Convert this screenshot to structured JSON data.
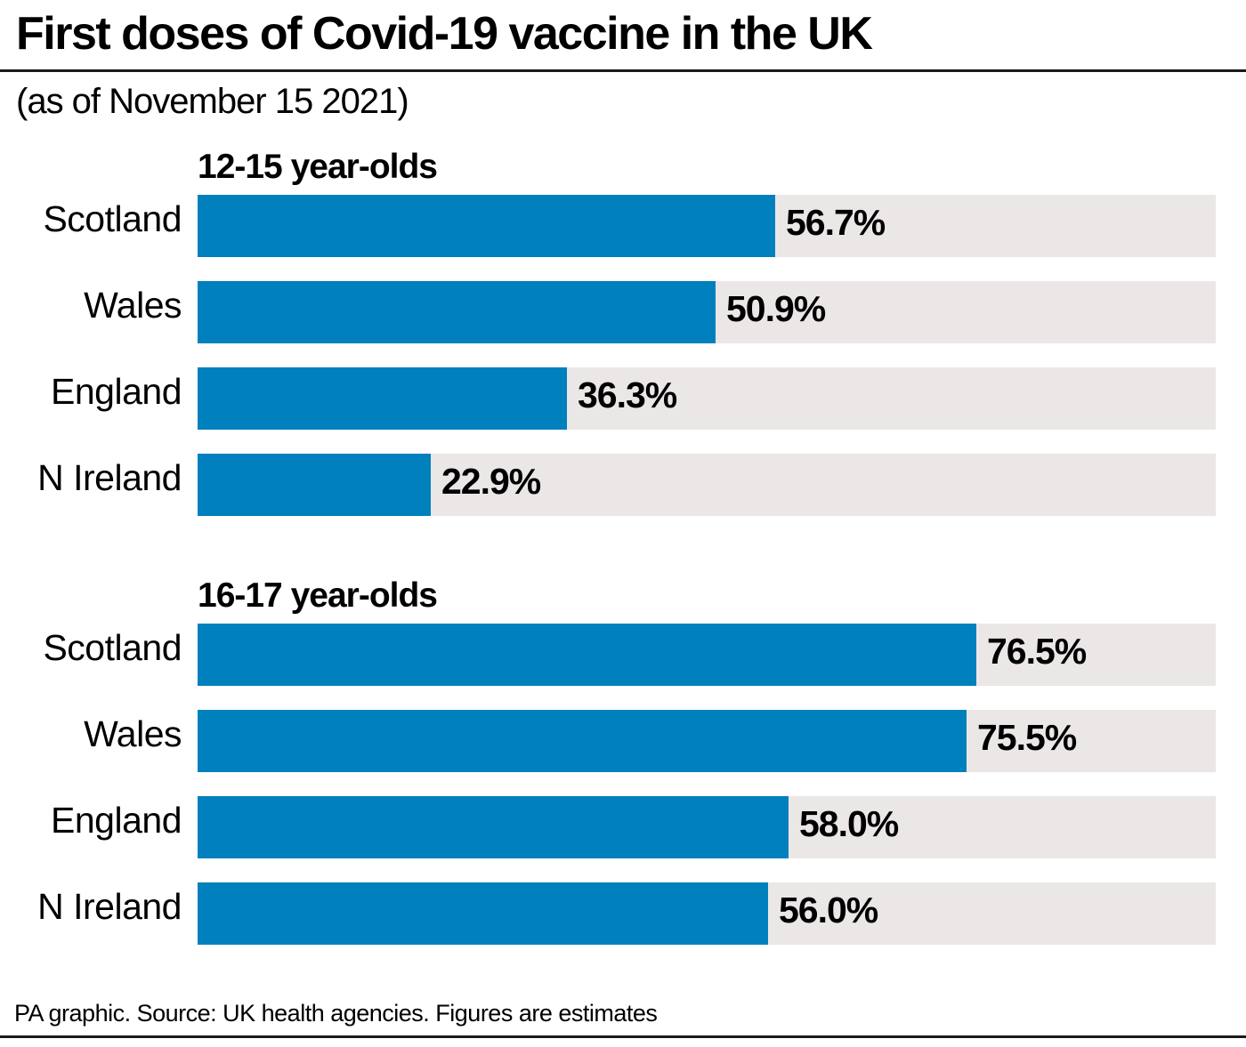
{
  "header": {
    "title": "First doses of Covid-19 vaccine in the UK",
    "subtitle": "(as of November 15 2021)"
  },
  "footer": {
    "source": "PA graphic. Source: UK health agencies. Figures are estimates"
  },
  "colors": {
    "bar": "#0080bd",
    "track": "#ebe7e7",
    "text": "#000000"
  },
  "chart_data": [
    {
      "type": "bar",
      "orientation": "horizontal",
      "title": "12-15 year-olds",
      "categories": [
        "Scotland",
        "Wales",
        "England",
        "N Ireland"
      ],
      "values": [
        56.7,
        50.9,
        36.3,
        22.9
      ],
      "labels": [
        "56.7%",
        "50.9%",
        "36.3%",
        "22.9%"
      ],
      "unit": "%",
      "xlim": [
        0,
        100
      ],
      "grid": false
    },
    {
      "type": "bar",
      "orientation": "horizontal",
      "title": "16-17 year-olds",
      "categories": [
        "Scotland",
        "Wales",
        "England",
        "N Ireland"
      ],
      "values": [
        76.5,
        75.5,
        58.0,
        56.0
      ],
      "labels": [
        "76.5%",
        "75.5%",
        "58.0%",
        "56.0%"
      ],
      "unit": "%",
      "xlim": [
        0,
        100
      ],
      "grid": false
    }
  ]
}
